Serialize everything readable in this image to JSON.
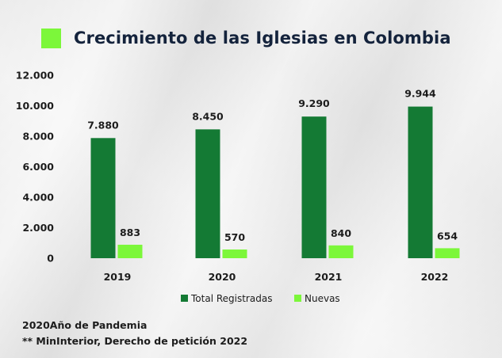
{
  "colors": {
    "total": "#147a34",
    "nuevas": "#7cf73a",
    "title": "#14233c",
    "text": "#1c1c1c"
  },
  "chart_data": {
    "type": "bar",
    "title": "Crecimiento de las Iglesias en Colombia",
    "categories": [
      "2019",
      "2020",
      "2021",
      "2022"
    ],
    "series": [
      {
        "name": "Total Registradas",
        "values": [
          7880,
          8450,
          9290,
          9944
        ],
        "labels": [
          "7.880",
          "8.450",
          "9.290",
          "9.944"
        ]
      },
      {
        "name": "Nuevas",
        "values": [
          883,
          570,
          840,
          654
        ],
        "labels": [
          "883",
          "570",
          "840",
          "654"
        ]
      }
    ],
    "ylim": [
      0,
      12000
    ],
    "yticks": [
      0,
      2000,
      4000,
      6000,
      8000,
      10000,
      12000
    ],
    "ytick_labels": [
      "0",
      "2.000",
      "4.000",
      "6.000",
      "8.000",
      "10.000",
      "12.000"
    ],
    "xlabel": "",
    "ylabel": "",
    "grid": false,
    "legend_position": "bottom"
  },
  "footnotes": {
    "line1": "2020Año de Pandemia",
    "line2": "** MinInterior, Derecho de petición 2022"
  }
}
